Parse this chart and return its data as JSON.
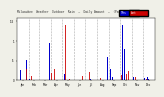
{
  "title": "Milwaukee  Weather  Outdoor  Rain  —  Daily Amount  —  (Past/Previous Year)",
  "ylabel": "",
  "background_color": "#f0f0e8",
  "plot_bg_color": "#ffffff",
  "current_color": "#0000cc",
  "prev_color": "#cc0000",
  "n_points": 365,
  "ylim": [
    0,
    1.6
  ],
  "legend_current": "This",
  "legend_prev": "Last",
  "grid_color": "#aaaaaa"
}
